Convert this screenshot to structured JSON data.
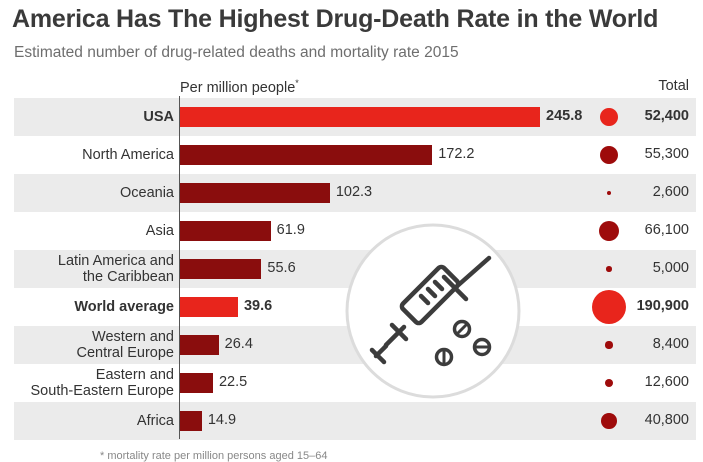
{
  "chart_data": {
    "type": "bar",
    "title": "America Has The Highest Drug-Death Rate in the World",
    "subtitle": "Estimated number of drug-related deaths and mortality rate 2015",
    "value_header": "Per million people",
    "value_header_mark": "*",
    "total_header": "Total",
    "categories": [
      [
        "USA"
      ],
      [
        "North America"
      ],
      [
        "Oceania"
      ],
      [
        "Asia"
      ],
      [
        "Latin America and",
        "the Caribbean"
      ],
      [
        "World average"
      ],
      [
        "Western and",
        "Central Europe"
      ],
      [
        "Eastern and",
        "South-Eastern Europe"
      ],
      [
        "Africa"
      ]
    ],
    "values": [
      245.8,
      172.2,
      102.3,
      61.9,
      55.6,
      39.6,
      26.4,
      22.5,
      14.9
    ],
    "value_labels": [
      "245.8",
      "172.2",
      "102.3",
      "61.9",
      "55.6",
      "39.6",
      "26.4",
      "22.5",
      "14.9"
    ],
    "totals": [
      52400,
      55300,
      2600,
      66100,
      5000,
      190900,
      8400,
      12600,
      40800
    ],
    "total_labels": [
      "52,400",
      "55,300",
      "2,600",
      "66,100",
      "5,000",
      "190,900",
      "8,400",
      "12,600",
      "40,800"
    ],
    "highlighted": [
      "USA",
      "World average"
    ],
    "footnote": "* mortality rate per million persons aged 15–64",
    "colors": {
      "bar": "#8a0d0d",
      "highlight": "#e8251c",
      "row_band": "#ebebeb"
    },
    "icon": "syringe-icon"
  }
}
